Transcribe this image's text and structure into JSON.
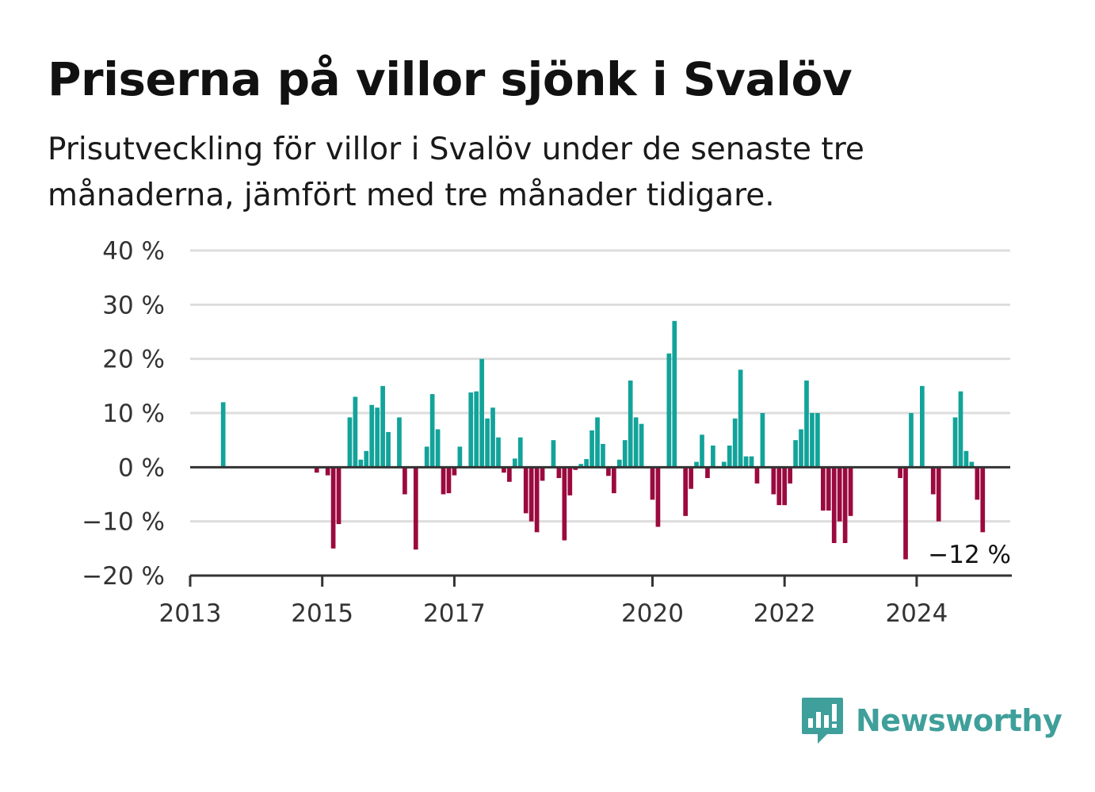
{
  "title": "Priserna på villor sjönk i Svalöv",
  "subtitle": "Prisutveckling för villor i Svalöv under de senaste tre månaderna, jämfört med tre månader tidigare.",
  "brand": {
    "name": "Newsworthy",
    "icon": "newsworthy-logo-icon",
    "color": "#3f9f9a"
  },
  "colors": {
    "positive": "#12a39a",
    "negative": "#9b0a3e",
    "grid": "#dddddd",
    "axis": "#333333"
  },
  "chart_data": {
    "type": "bar",
    "title": "",
    "xlabel": "",
    "ylabel": "",
    "ylim": [
      -20,
      40
    ],
    "y_ticks": [
      40,
      30,
      20,
      10,
      0,
      -10,
      -20
    ],
    "y_tick_labels": [
      "40 %",
      "30 %",
      "20 %",
      "10 %",
      "0 %",
      "−10 %",
      "−20 %"
    ],
    "x_ticks": [
      2013,
      2015,
      2017,
      2020,
      2022,
      2024
    ],
    "x_tick_labels": [
      "2013",
      "2015",
      "2017",
      "2020",
      "2022",
      "2024"
    ],
    "x_range": [
      "2013-01",
      "2025-06"
    ],
    "grid": true,
    "end_label": "−12 %",
    "unit": "%",
    "series": [
      {
        "start": "2013-07",
        "frequency": "monthly",
        "values": [
          12,
          null,
          null,
          null,
          null,
          null,
          null,
          null,
          null,
          null,
          null,
          null,
          null,
          null,
          null,
          null,
          null,
          -1,
          null,
          -1.5,
          -15,
          -10.5,
          null,
          9.2,
          13,
          1.4,
          3,
          11.5,
          11,
          15,
          6.5,
          null,
          9.2,
          -5,
          null,
          -15.2,
          null,
          3.8,
          13.5,
          7,
          -5,
          -4.8,
          -1.5,
          3.8,
          null,
          13.8,
          14,
          20,
          9,
          11,
          5.5,
          -1,
          -2.7,
          1.6,
          5.5,
          -8.5,
          -10,
          -12,
          -2.5,
          null,
          5,
          -2,
          -13.5,
          -5.2,
          -0.5,
          0.6,
          1.5,
          6.8,
          9.2,
          4.3,
          -1.6,
          -4.8,
          1.4,
          5,
          16,
          9.2,
          8,
          null,
          -6,
          -11,
          null,
          21,
          27,
          null,
          -9,
          -4,
          1,
          6,
          -2,
          4,
          null,
          1,
          4,
          9,
          18,
          2,
          2,
          -3,
          10,
          null,
          -5,
          -7,
          -7,
          -3,
          5,
          7,
          16,
          10,
          10,
          -8,
          -8,
          -14,
          -10,
          -14,
          -9,
          null,
          null,
          null,
          null,
          null,
          null,
          null,
          null,
          -2,
          -17,
          10,
          null,
          15,
          null,
          -5,
          -10,
          null,
          null,
          9.2,
          14,
          3,
          1,
          -6,
          -12
        ]
      }
    ]
  }
}
